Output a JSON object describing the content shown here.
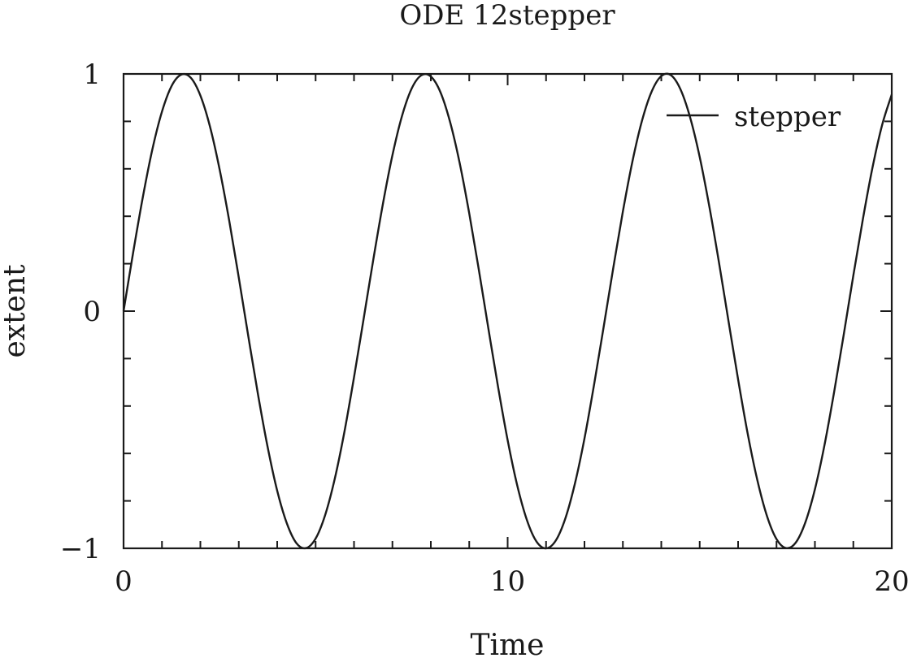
{
  "chart_data": {
    "type": "line",
    "title": "ODE 12stepper",
    "xlabel": "Time",
    "ylabel": "extent",
    "xlim": [
      0,
      20
    ],
    "ylim": [
      -1,
      1
    ],
    "x_ticks": [
      0,
      10,
      20
    ],
    "x_tick_labels": [
      "0",
      "10",
      "20"
    ],
    "y_ticks": [
      -1,
      0,
      1
    ],
    "y_tick_labels": [
      "−1",
      "0",
      "1"
    ],
    "x_minor_step": 1,
    "y_minor_step": 0.2,
    "grid": false,
    "legend": {
      "position": "top-right",
      "entries": [
        "stepper"
      ]
    },
    "series": [
      {
        "name": "stepper",
        "color": "#1a1a1a",
        "x": [
          0,
          0.25,
          0.5,
          0.75,
          1,
          1.25,
          1.5,
          1.75,
          2,
          2.25,
          2.5,
          2.75,
          3,
          3.25,
          3.5,
          3.75,
          4,
          4.25,
          4.5,
          4.75,
          5,
          5.25,
          5.5,
          5.75,
          6,
          6.25,
          6.5,
          6.75,
          7,
          7.25,
          7.5,
          7.75,
          8,
          8.25,
          8.5,
          8.75,
          9,
          9.25,
          9.5,
          9.75,
          10,
          10.25,
          10.5,
          10.75,
          11,
          11.25,
          11.5,
          11.75,
          12,
          12.25,
          12.5,
          12.75,
          13,
          13.25,
          13.5,
          13.75,
          14,
          14.25,
          14.5,
          14.75,
          15,
          15.25,
          15.5,
          15.75,
          16,
          16.25,
          16.5,
          16.75,
          17,
          17.25,
          17.5,
          17.75,
          18,
          18.25,
          18.5,
          18.75,
          19,
          19.25,
          19.5,
          19.75,
          20
        ],
        "y": [
          0,
          0.247,
          0.479,
          0.682,
          0.841,
          0.949,
          0.997,
          0.984,
          0.909,
          0.778,
          0.598,
          0.382,
          0.141,
          -0.108,
          -0.351,
          -0.572,
          -0.757,
          -0.894,
          -0.978,
          -0.999,
          -0.959,
          -0.859,
          -0.706,
          -0.509,
          -0.279,
          -0.033,
          0.215,
          0.45,
          0.657,
          0.823,
          0.938,
          0.994,
          0.989,
          0.923,
          0.798,
          0.625,
          0.412,
          0.174,
          -0.075,
          -0.319,
          -0.544,
          -0.735,
          -0.88,
          -0.971,
          -1,
          -0.968,
          -0.875,
          -0.728,
          -0.537,
          -0.31,
          -0.066,
          0.182,
          0.42,
          0.632,
          0.804,
          0.926,
          0.991,
          0.995,
          0.935,
          0.817,
          0.65,
          0.442,
          0.207,
          -0.042,
          -0.288,
          -0.517,
          -0.712,
          -0.863,
          -0.961,
          -0.999,
          -0.976,
          -0.891,
          -0.751,
          -0.564,
          -0.341,
          -0.099,
          0.15,
          0.389,
          0.606,
          0.785,
          0.913
        ]
      }
    ]
  }
}
